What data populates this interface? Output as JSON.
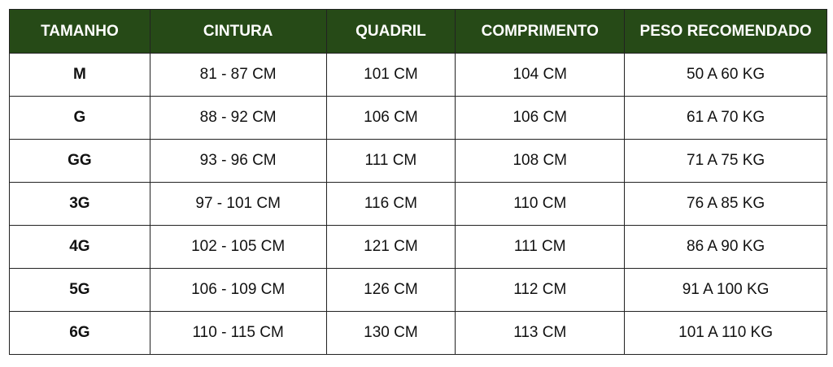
{
  "colors": {
    "header_bg": "#264a17",
    "header_text": "#ffffff"
  },
  "headers": [
    "TAMANHO",
    "CINTURA",
    "QUADRIL",
    "COMPRIMENTO",
    "PESO RECOMENDADO"
  ],
  "rows": [
    [
      "M",
      "81 - 87 CM",
      "101 CM",
      "104 CM",
      "50 A 60 KG"
    ],
    [
      "G",
      "88 - 92 CM",
      "106 CM",
      "106 CM",
      "61 A 70 KG"
    ],
    [
      "GG",
      "93 - 96 CM",
      "111 CM",
      "108 CM",
      "71 A 75 KG"
    ],
    [
      "3G",
      "97 - 101 CM",
      "116 CM",
      "110 CM",
      "76 A 85 KG"
    ],
    [
      "4G",
      "102 - 105 CM",
      "121 CM",
      "111 CM",
      "86 A 90 KG"
    ],
    [
      "5G",
      "106 - 109 CM",
      "126 CM",
      "112 CM",
      "91 A 100 KG"
    ],
    [
      "6G",
      "110 - 115 CM",
      "130 CM",
      "113 CM",
      "101 A 110 KG"
    ]
  ]
}
